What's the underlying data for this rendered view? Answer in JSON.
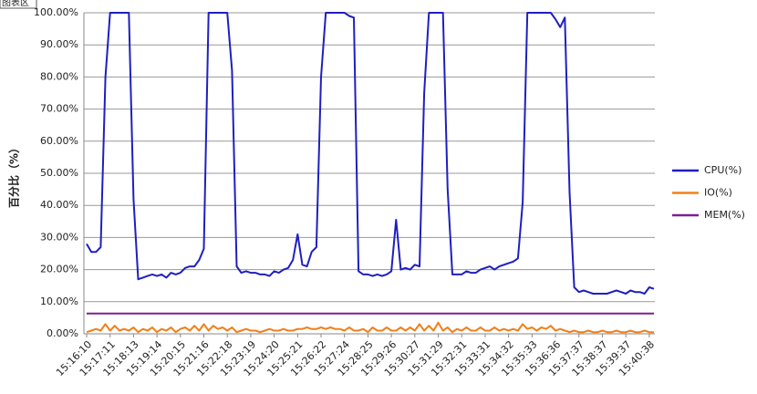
{
  "chart_data": {
    "type": "line",
    "tooltip": "图表区",
    "y_label": "百分比（%）",
    "categories": [
      "15:16:10",
      null,
      null,
      null,
      null,
      "15:17:11",
      null,
      null,
      null,
      null,
      "15:18:13",
      null,
      null,
      null,
      null,
      "15:19:14",
      null,
      null,
      null,
      null,
      "15:20:15",
      null,
      null,
      null,
      null,
      "15:21:16",
      null,
      null,
      null,
      null,
      "15:22:18",
      null,
      null,
      null,
      null,
      "15:23:19",
      null,
      null,
      null,
      null,
      "15:24:20",
      null,
      null,
      null,
      null,
      "15:25:21",
      null,
      null,
      null,
      null,
      "15:26:22",
      null,
      null,
      null,
      null,
      "15:27:24",
      null,
      null,
      null,
      null,
      "15:28:25",
      null,
      null,
      null,
      null,
      "15:29:26",
      null,
      null,
      null,
      null,
      "15:30:27",
      null,
      null,
      null,
      null,
      "15:31:29",
      null,
      null,
      null,
      null,
      "15:32:31",
      null,
      null,
      null,
      null,
      "15:33:31",
      null,
      null,
      null,
      null,
      "15:34:32",
      null,
      null,
      null,
      null,
      "15:35:33",
      null,
      null,
      null,
      null,
      "15:36:36",
      null,
      null,
      null,
      null,
      "15:37:37",
      null,
      null,
      null,
      null,
      "15:38:37",
      null,
      null,
      null,
      null,
      "15:39:37",
      null,
      null,
      null,
      null,
      "15:40:38",
      null
    ],
    "series": [
      {
        "name": "CPU(%)",
        "color": "#1f1fbf",
        "values": [
          28,
          25.5,
          25.5,
          27,
          80,
          100,
          100,
          100,
          100,
          100,
          42,
          17,
          17.5,
          18,
          18.5,
          18,
          18.5,
          17.5,
          19,
          18.5,
          19,
          20.5,
          21,
          21,
          23,
          26.5,
          100,
          100,
          100,
          100,
          100,
          82,
          21,
          19,
          19.5,
          19,
          19,
          18.5,
          18.5,
          18,
          19.5,
          19,
          20,
          20.5,
          23,
          31,
          21.5,
          21,
          25.5,
          27,
          80,
          100,
          100,
          100,
          100,
          100,
          99,
          98.5,
          19.5,
          18.5,
          18.5,
          18,
          18.5,
          18,
          18.5,
          19.5,
          35.5,
          20,
          20.5,
          20,
          21.5,
          21,
          75,
          100,
          100,
          100,
          100,
          45,
          18.5,
          18.5,
          18.5,
          19.5,
          19,
          19,
          20,
          20.5,
          21,
          20,
          21,
          21.5,
          22,
          22.5,
          23.5,
          41,
          100,
          100,
          100,
          100,
          100,
          100,
          98,
          95.5,
          98.5,
          44,
          14.5,
          13,
          13.5,
          13,
          12.5,
          12.5,
          12.5,
          12.5,
          13,
          13.5,
          13,
          12.5,
          13.5,
          13,
          13,
          12.5,
          14.5,
          14
        ]
      },
      {
        "name": "IO(%)",
        "color": "#f0801a",
        "values": [
          0.5,
          1,
          1.5,
          1,
          3,
          1,
          2.5,
          1,
          1.5,
          1,
          2,
          0.5,
          1.5,
          1,
          2,
          0.5,
          1.5,
          1,
          2,
          0.5,
          1.5,
          2,
          1,
          2.5,
          1,
          3,
          1,
          2.5,
          1.5,
          2,
          1,
          2,
          0.5,
          1,
          1.5,
          1,
          1,
          0.5,
          1,
          1.5,
          1,
          1,
          1.5,
          1,
          1,
          1.5,
          1.5,
          2,
          1.5,
          1.5,
          2,
          1.5,
          2,
          1.5,
          1.5,
          1,
          2,
          1,
          1,
          1.5,
          0.5,
          2,
          1,
          1,
          2,
          1,
          1,
          2,
          1,
          2,
          1,
          3,
          1,
          2.5,
          1,
          3.5,
          1,
          2,
          0.5,
          1.5,
          1,
          2,
          1,
          1,
          2,
          1,
          1,
          2,
          1,
          1.5,
          1,
          1.5,
          1,
          3,
          1.5,
          2,
          1,
          2,
          1.5,
          2.5,
          1,
          1.5,
          1,
          0.5,
          1,
          0.5,
          0.5,
          1,
          0.5,
          0.5,
          1,
          0.5,
          0.5,
          1,
          0.5,
          0.5,
          1,
          0.5,
          0.5,
          1,
          0.5,
          0.5
        ]
      },
      {
        "name": "MEM(%)",
        "color": "#7f1f8f",
        "values": [
          6.3,
          6.3,
          6.3,
          6.3,
          6.3,
          6.3,
          6.3,
          6.3,
          6.3,
          6.3,
          6.3,
          6.3,
          6.3,
          6.3,
          6.3,
          6.3,
          6.3,
          6.3,
          6.3,
          6.3,
          6.3,
          6.3,
          6.3,
          6.3,
          6.3,
          6.3,
          6.3,
          6.3,
          6.3,
          6.3,
          6.3,
          6.3,
          6.3,
          6.3,
          6.3,
          6.3,
          6.3,
          6.3,
          6.3,
          6.3,
          6.3,
          6.3,
          6.3,
          6.3,
          6.3,
          6.3,
          6.3,
          6.3,
          6.3,
          6.3,
          6.3,
          6.3,
          6.3,
          6.3,
          6.3,
          6.3,
          6.3,
          6.3,
          6.3,
          6.3,
          6.3,
          6.3,
          6.3,
          6.3,
          6.3,
          6.3,
          6.3,
          6.3,
          6.3,
          6.3,
          6.3,
          6.3,
          6.3,
          6.3,
          6.3,
          6.3,
          6.3,
          6.3,
          6.3,
          6.3,
          6.3,
          6.3,
          6.3,
          6.3,
          6.3,
          6.3,
          6.3,
          6.3,
          6.3,
          6.3,
          6.3,
          6.3,
          6.3,
          6.3,
          6.3,
          6.3,
          6.3,
          6.3,
          6.3,
          6.3,
          6.3,
          6.3,
          6.3,
          6.3,
          6.3,
          6.3,
          6.3,
          6.3,
          6.3,
          6.3,
          6.3,
          6.3,
          6.3,
          6.3,
          6.3,
          6.3,
          6.3,
          6.3,
          6.3,
          6.3,
          6.3,
          6.3
        ]
      }
    ],
    "ylim": [
      0,
      100
    ],
    "yticks": [
      {
        "value": 0,
        "label": "0.00%"
      },
      {
        "value": 10,
        "label": "10.00%"
      },
      {
        "value": 20,
        "label": "20.00%"
      },
      {
        "value": 30,
        "label": "30.00%"
      },
      {
        "value": 40,
        "label": "40.00%"
      },
      {
        "value": 50,
        "label": "50.00%"
      },
      {
        "value": 60,
        "label": "60.00%"
      },
      {
        "value": 70,
        "label": "70.00%"
      },
      {
        "value": 80,
        "label": "80.00%"
      },
      {
        "value": 90,
        "label": "90.00%"
      },
      {
        "value": 100,
        "label": "100.00%"
      }
    ],
    "grid": true,
    "legend": "right"
  }
}
